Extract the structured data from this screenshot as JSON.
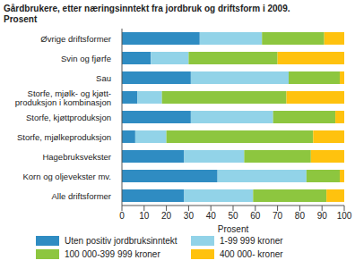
{
  "chart_data": {
    "type": "bar",
    "title": "Gårdbrukere, etter næringsinntekt fra jordbruk og driftsform i 2009.",
    "subtitle": "Prosent",
    "x_label": "Prosent",
    "orientation": "horizontal",
    "stacked": true,
    "grid": false,
    "legend": "bottom",
    "categories": [
      "Øvrige driftsformer",
      "Svin og fjørfe",
      "Sau",
      "Storfe, mjølk- og kjøtt-\nproduksjon i kombinasjon",
      "Storfe, kjøttproduksjon",
      "Storfe, mjølkeproduksjon",
      "Hagebruksvekster",
      "Korn og oljevekster mv.",
      "Alle driftsformer"
    ],
    "series": [
      {
        "name": "Uten positiv jordbruksinntekt",
        "color": "#2f8cc2",
        "values": [
          35,
          13,
          31,
          7,
          31,
          6,
          28,
          43,
          28
        ]
      },
      {
        "name": "1-99 999 kroner",
        "color": "#92d3e8",
        "values": [
          28,
          17,
          44,
          11,
          37,
          14,
          27,
          40,
          31
        ]
      },
      {
        "name": "100 000-399 999 kroner",
        "color": "#8dc63f",
        "values": [
          28,
          40,
          23,
          56,
          28,
          66,
          30,
          15,
          33
        ]
      },
      {
        "name": "400 000- kroner",
        "color": "#ffc20e",
        "values": [
          9,
          30,
          2,
          26,
          4,
          14,
          15,
          2,
          8
        ]
      }
    ],
    "xlim": [
      0,
      100
    ],
    "xticks": [
      0,
      10,
      20,
      30,
      40,
      50,
      60,
      70,
      80,
      90,
      100
    ]
  }
}
